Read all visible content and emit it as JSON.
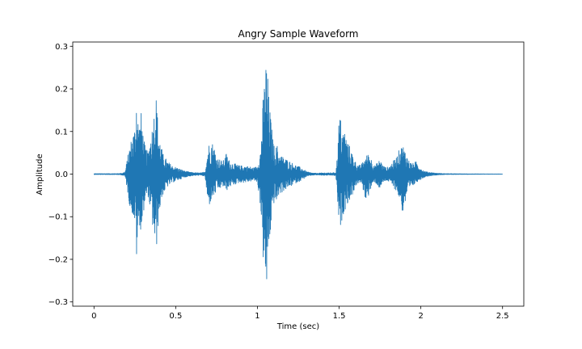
{
  "chart_data": {
    "type": "line",
    "title": "Angry Sample Waveform",
    "xlabel": "Time (sec)",
    "ylabel": "Amplitude",
    "xlim": [
      -0.13,
      2.63
    ],
    "ylim": [
      -0.31,
      0.31
    ],
    "xticks": [
      0,
      0.5,
      1,
      1.5,
      2,
      2.5
    ],
    "xtick_labels": [
      "0",
      "0.5",
      "1",
      "1.5",
      "2",
      "2.5"
    ],
    "yticks": [
      0.3,
      0.2,
      0.1,
      0.0,
      -0.1,
      -0.2,
      -0.3
    ],
    "ytick_labels": [
      "0.3",
      "0.2",
      "0.1",
      "0.0",
      "−0.1",
      "−0.2",
      "−0.3"
    ],
    "grid": false,
    "series": [
      {
        "color": "#1f77b4",
        "envelope": {
          "time": [
            0.0,
            0.05,
            0.1,
            0.14,
            0.17,
            0.19,
            0.205,
            0.22,
            0.24,
            0.255,
            0.26,
            0.27,
            0.28,
            0.29,
            0.3,
            0.31,
            0.33,
            0.35,
            0.36,
            0.37,
            0.38,
            0.385,
            0.39,
            0.4,
            0.42,
            0.45,
            0.48,
            0.51,
            0.54,
            0.57,
            0.6,
            0.63,
            0.66,
            0.68,
            0.69,
            0.7,
            0.72,
            0.74,
            0.75,
            0.77,
            0.79,
            0.81,
            0.83,
            0.86,
            0.89,
            0.92,
            0.95,
            0.98,
            1.0,
            1.02,
            1.035,
            1.05,
            1.055,
            1.06,
            1.065,
            1.07,
            1.075,
            1.08,
            1.09,
            1.1,
            1.11,
            1.12,
            1.13,
            1.16,
            1.2,
            1.24,
            1.27,
            1.3,
            1.33,
            1.36,
            1.4,
            1.43,
            1.46,
            1.48,
            1.49,
            1.5,
            1.51,
            1.52,
            1.53,
            1.55,
            1.57,
            1.59,
            1.6,
            1.62,
            1.64,
            1.66,
            1.68,
            1.7,
            1.72,
            1.74,
            1.75,
            1.77,
            1.79,
            1.81,
            1.83,
            1.85,
            1.87,
            1.89,
            1.91,
            1.93,
            1.95,
            1.97,
            1.99,
            2.01,
            2.03,
            2.06,
            2.1,
            2.15,
            2.2,
            2.3,
            2.4,
            2.5
          ],
          "upper": [
            0.001,
            0.001,
            0.001,
            0.001,
            0.002,
            0.005,
            0.04,
            0.07,
            0.1,
            0.12,
            0.205,
            0.13,
            0.12,
            0.15,
            0.1,
            0.07,
            0.05,
            0.1,
            0.12,
            0.16,
            0.19,
            0.165,
            0.13,
            0.09,
            0.05,
            0.03,
            0.02,
            0.015,
            0.01,
            0.006,
            0.004,
            0.003,
            0.003,
            0.006,
            0.04,
            0.07,
            0.08,
            0.06,
            0.04,
            0.035,
            0.03,
            0.05,
            0.03,
            0.025,
            0.02,
            0.02,
            0.018,
            0.015,
            0.02,
            0.06,
            0.18,
            0.26,
            0.28,
            0.25,
            0.22,
            0.18,
            0.16,
            0.14,
            0.1,
            0.07,
            0.06,
            0.07,
            0.05,
            0.04,
            0.03,
            0.02,
            0.015,
            0.006,
            0.003,
            0.002,
            0.003,
            0.003,
            0.003,
            0.004,
            0.05,
            0.14,
            0.13,
            0.1,
            0.11,
            0.08,
            0.06,
            0.04,
            0.03,
            0.02,
            0.025,
            0.04,
            0.05,
            0.035,
            0.02,
            0.03,
            0.035,
            0.02,
            0.015,
            0.02,
            0.03,
            0.04,
            0.06,
            0.07,
            0.05,
            0.03,
            0.025,
            0.03,
            0.02,
            0.01,
            0.006,
            0.004,
            0.002,
            0.001,
            0.0008,
            0.0005,
            0.0003,
            0.0002
          ],
          "lower": [
            -0.001,
            -0.001,
            -0.001,
            -0.001,
            -0.002,
            -0.005,
            -0.04,
            -0.08,
            -0.1,
            -0.13,
            -0.205,
            -0.14,
            -0.12,
            -0.15,
            -0.1,
            -0.07,
            -0.05,
            -0.1,
            -0.13,
            -0.16,
            -0.19,
            -0.165,
            -0.13,
            -0.09,
            -0.05,
            -0.03,
            -0.02,
            -0.015,
            -0.01,
            -0.006,
            -0.004,
            -0.003,
            -0.003,
            -0.006,
            -0.05,
            -0.08,
            -0.06,
            -0.05,
            -0.04,
            -0.035,
            -0.03,
            -0.04,
            -0.03,
            -0.025,
            -0.02,
            -0.02,
            -0.018,
            -0.015,
            -0.02,
            -0.08,
            -0.2,
            -0.27,
            -0.285,
            -0.25,
            -0.21,
            -0.18,
            -0.16,
            -0.14,
            -0.1,
            -0.07,
            -0.065,
            -0.07,
            -0.05,
            -0.04,
            -0.03,
            -0.02,
            -0.015,
            -0.006,
            -0.003,
            -0.002,
            -0.003,
            -0.003,
            -0.003,
            -0.004,
            -0.06,
            -0.14,
            -0.13,
            -0.1,
            -0.09,
            -0.07,
            -0.06,
            -0.04,
            -0.03,
            -0.02,
            -0.025,
            -0.06,
            -0.05,
            -0.03,
            -0.02,
            -0.03,
            -0.035,
            -0.02,
            -0.015,
            -0.02,
            -0.03,
            -0.04,
            -0.06,
            -0.095,
            -0.06,
            -0.04,
            -0.03,
            -0.02,
            -0.015,
            -0.01,
            -0.006,
            -0.004,
            -0.002,
            -0.001,
            -0.0008,
            -0.0005,
            -0.0003,
            -0.0002
          ]
        }
      }
    ]
  }
}
